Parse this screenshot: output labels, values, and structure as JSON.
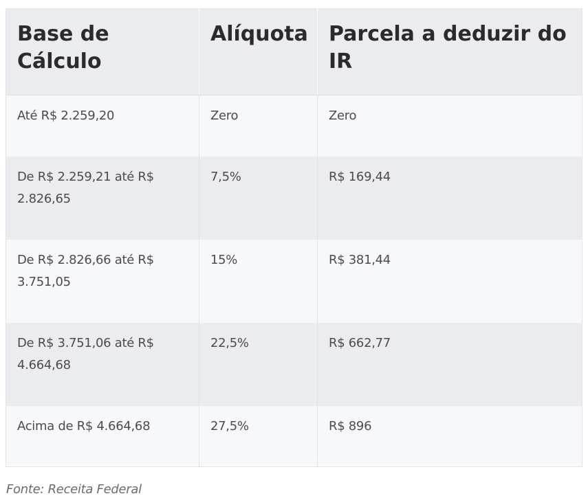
{
  "table": {
    "headers": [
      "Base de Cálculo",
      "Alíquota",
      "Parcela a deduzir do IR"
    ],
    "rows": [
      [
        "Até R$ 2.259,20",
        "Zero",
        "Zero"
      ],
      [
        "De R$ 2.259,21 até R$ 2.826,65",
        "7,5%",
        "R$ 169,44"
      ],
      [
        "De R$ 2.826,66 até R$ 3.751,05",
        "15%",
        "R$ 381,44"
      ],
      [
        "De R$ 3.751,06 até R$ 4.664,68",
        "22,5%",
        "R$ 662,77"
      ],
      [
        "Acima de R$ 4.664,68",
        "27,5%",
        "R$ 896"
      ]
    ]
  },
  "source": "Fonte: Receita Federal"
}
